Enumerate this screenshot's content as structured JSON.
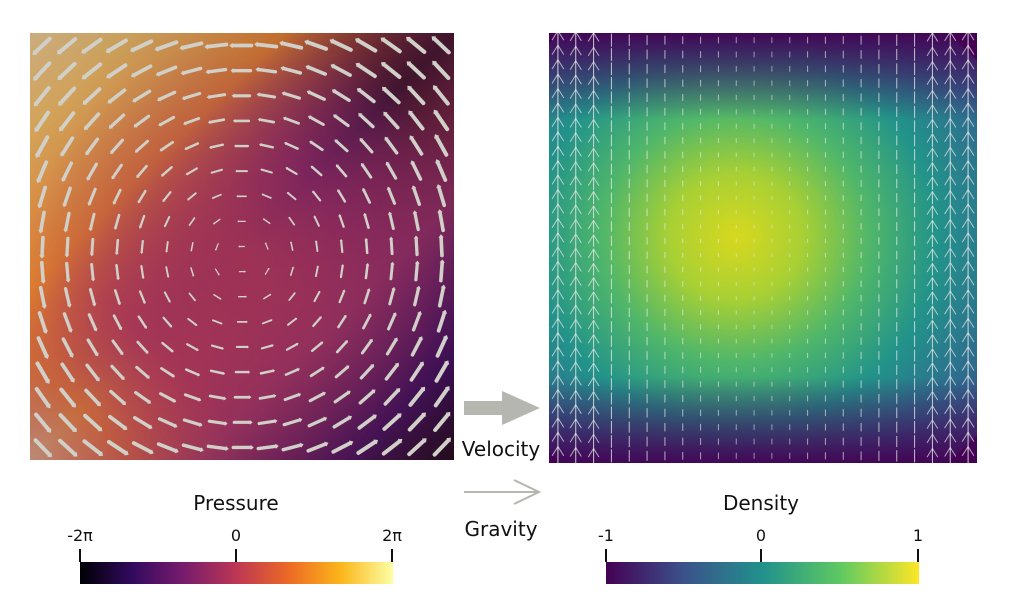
{
  "pressure": {
    "title": "Pressure",
    "ticks": [
      "-2π",
      "0",
      "2π"
    ],
    "colormap": [
      "#000004",
      "#320a5e",
      "#781c6d",
      "#bc3754",
      "#ed6925",
      "#fbb61a",
      "#fcffa4"
    ]
  },
  "density": {
    "title": "Density",
    "ticks": [
      "-1",
      "0",
      "1"
    ],
    "colormap": [
      "#440154",
      "#3b528b",
      "#21918c",
      "#5ec962",
      "#fde725"
    ]
  },
  "legend": {
    "velocity_label": "Velocity",
    "gravity_label": "Gravity",
    "velocity_arrow_color": "#b5b6b0",
    "gravity_arrow_color": "#b5b6b0"
  }
}
